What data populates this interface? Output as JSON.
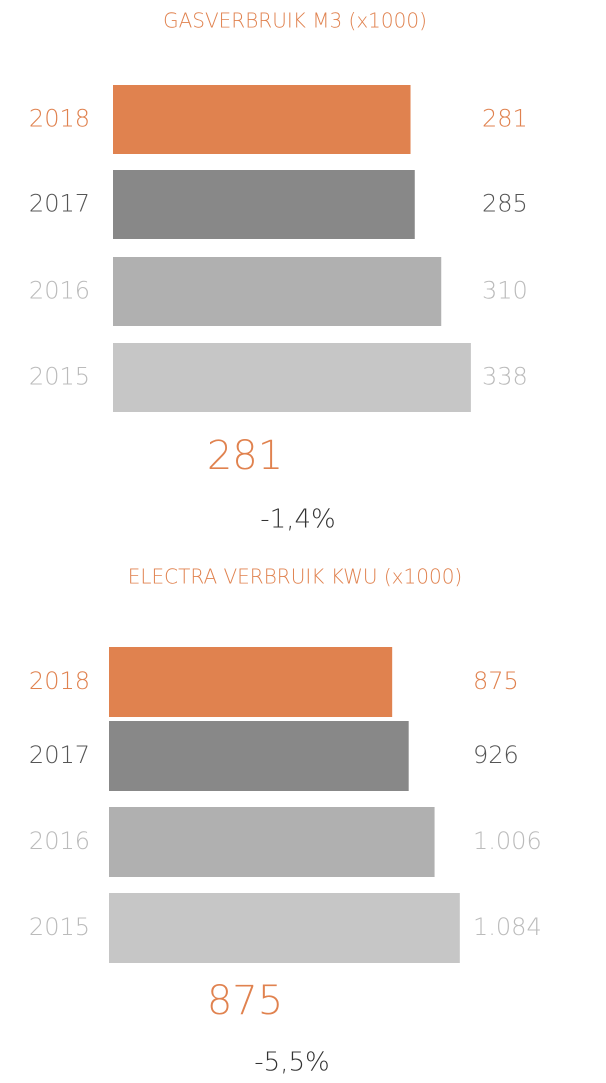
{
  "chart_data": [
    {
      "type": "barh",
      "title": "GASVERBRUIK M3 (x1000)",
      "categories": [
        "2018",
        "2017",
        "2016",
        "2015"
      ],
      "values": [
        281,
        285,
        310,
        338
      ],
      "colors": [
        "#e0824f",
        "#888888",
        "#b0b0b0",
        "#c6c6c6"
      ],
      "label_colors": [
        "#e0824f",
        "#555555",
        "#bbbbbb",
        "#bbbbbb"
      ],
      "xlim": [
        0,
        340
      ],
      "annotations": [
        "281",
        "-1,4%"
      ]
    },
    {
      "type": "barh",
      "title": "ELECTRA VERBRUIK KWU (x1000)",
      "categories": [
        "2018",
        "2017",
        "2016",
        "2015"
      ],
      "values": [
        875,
        926,
        1006,
        1084
      ],
      "value_labels": [
        "875",
        "926",
        "1.006",
        "1.084"
      ],
      "colors": [
        "#e0824f",
        "#888888",
        "#b0b0b0",
        "#c6c6c6"
      ],
      "label_colors": [
        "#e0824f",
        "#555555",
        "#bbbbbb",
        "#bbbbbb"
      ],
      "xlim": [
        0,
        1100
      ],
      "annotations": [
        "875",
        "-5,5%"
      ]
    }
  ]
}
